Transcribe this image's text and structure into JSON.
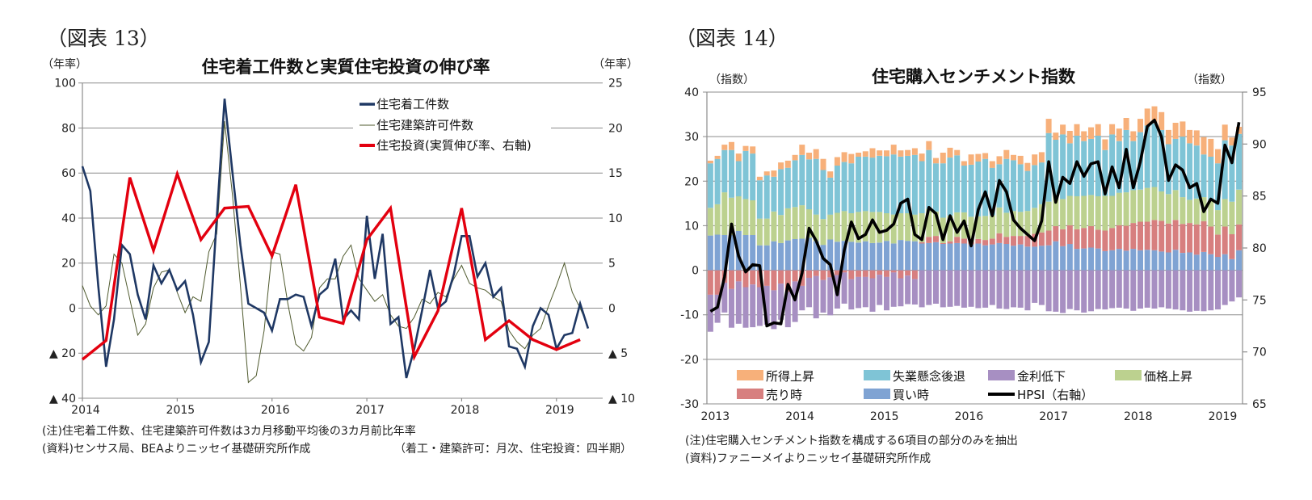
{
  "figure13": {
    "label": "（図表 13）",
    "note": "(注)住宅着工件数、住宅建築許可件数は3カ月移動平均後の3カ月前比年率",
    "source": "(資料)センサス局、BEAよりニッセイ基礎研究所作成",
    "frequency_note": "（着工・建築許可：月次、住宅投資：四半期）"
  },
  "figure14": {
    "label": "（図表 14）",
    "note": "(注)住宅購入センチメント指数を構成する6項目の部分のみを抽出",
    "source": "(資料)ファニーメイよりニッセイ基礎研究所作成"
  },
  "chart_data": [
    {
      "type": "line",
      "title": "住宅着工件数と実質住宅投資の伸び率",
      "left_unit": "（年率）",
      "right_unit": "（年率）",
      "ylim": [
        -40,
        100
      ],
      "y2lim": [
        -10,
        25
      ],
      "grid": true,
      "legend_position": "top-right",
      "yticks": [
        {
          "value": 100,
          "label": "100"
        },
        {
          "value": 80,
          "label": "80"
        },
        {
          "value": 60,
          "label": "60"
        },
        {
          "value": 40,
          "label": "40"
        },
        {
          "value": 20,
          "label": "20"
        },
        {
          "value": 0,
          "label": "0"
        },
        {
          "value": -20,
          "label": "▲ 20"
        },
        {
          "value": -40,
          "label": "▲ 40"
        }
      ],
      "y2ticks": [
        {
          "value": 25,
          "label": "25"
        },
        {
          "value": 20,
          "label": "20"
        },
        {
          "value": 15,
          "label": "15"
        },
        {
          "value": 10,
          "label": "10"
        },
        {
          "value": 5,
          "label": "5"
        },
        {
          "value": 0,
          "label": "0"
        },
        {
          "value": -5,
          "label": "▲ 5"
        },
        {
          "value": -10,
          "label": "▲ 10"
        }
      ],
      "xticks": [
        "2014",
        "2015",
        "2016",
        "2017",
        "2018",
        "2019"
      ],
      "months": [
        "2014-01",
        "2014-02",
        "2014-03",
        "2014-04",
        "2014-05",
        "2014-06",
        "2014-07",
        "2014-08",
        "2014-09",
        "2014-10",
        "2014-11",
        "2014-12",
        "2015-01",
        "2015-02",
        "2015-03",
        "2015-04",
        "2015-05",
        "2015-06",
        "2015-07",
        "2015-08",
        "2015-09",
        "2015-10",
        "2015-11",
        "2015-12",
        "2016-01",
        "2016-02",
        "2016-03",
        "2016-04",
        "2016-05",
        "2016-06",
        "2016-07",
        "2016-08",
        "2016-09",
        "2016-10",
        "2016-11",
        "2016-12",
        "2017-01",
        "2017-02",
        "2017-03",
        "2017-04",
        "2017-05",
        "2017-06",
        "2017-07",
        "2017-08",
        "2017-09",
        "2017-10",
        "2017-11",
        "2017-12",
        "2018-01",
        "2018-02",
        "2018-03",
        "2018-04",
        "2018-05",
        "2018-06",
        "2018-07",
        "2018-08",
        "2018-09",
        "2018-10",
        "2018-11",
        "2018-12",
        "2019-01",
        "2019-02",
        "2019-03",
        "2019-04",
        "2019-05"
      ],
      "quarters": [
        "2014Q1",
        "2014Q2",
        "2014Q3",
        "2014Q4",
        "2015Q1",
        "2015Q2",
        "2015Q3",
        "2015Q4",
        "2016Q1",
        "2016Q2",
        "2016Q3",
        "2016Q4",
        "2017Q1",
        "2017Q2",
        "2017Q3",
        "2017Q4",
        "2018Q1",
        "2018Q2",
        "2018Q3",
        "2018Q4",
        "2019Q1",
        "2019Q2"
      ],
      "series": [
        {
          "name": "住宅着工件数",
          "axis": "left",
          "frequency": "monthly",
          "color": "#1f3864",
          "values": [
            63,
            52,
            10,
            -26,
            -5,
            28,
            24,
            6,
            -5,
            19,
            11,
            17,
            8,
            12,
            -3,
            -24,
            -15,
            40,
            93,
            60,
            28,
            2,
            0,
            -2,
            -10,
            4,
            4,
            6,
            5,
            -8,
            6,
            9,
            22,
            -5,
            -1,
            -5,
            41,
            13,
            33,
            -7,
            -4,
            -31,
            -18,
            -1,
            17,
            0,
            3,
            15,
            32,
            32,
            14,
            20,
            5,
            9,
            -17,
            -18,
            -26,
            -8,
            0,
            -3,
            -18,
            -12,
            -11,
            2,
            -9
          ]
        },
        {
          "name": "住宅建築許可件数",
          "axis": "left",
          "frequency": "monthly",
          "color": "#4f5a2e",
          "values": [
            10,
            1,
            -3,
            1,
            24,
            20,
            4,
            -12,
            -7,
            9,
            16,
            17,
            7,
            -2,
            5,
            3,
            25,
            33,
            83,
            50,
            10,
            -33,
            -30,
            -10,
            25,
            24,
            2,
            -16,
            -19,
            -13,
            9,
            13,
            13,
            23,
            28,
            13,
            8,
            3,
            6,
            -3,
            -8,
            -9,
            -4,
            4,
            2,
            7,
            5,
            13,
            19,
            11,
            9,
            8,
            5,
            3,
            -10,
            -15,
            -18,
            -12,
            -9,
            1,
            10,
            20,
            7,
            0,
            -8
          ]
        },
        {
          "name": "住宅投資(実質伸び率、右軸)",
          "axis": "right",
          "frequency": "quarterly",
          "color": "#e3000f",
          "values": [
            -5.7,
            -3.6,
            14.5,
            6.4,
            14.9,
            7.6,
            11.1,
            11.3,
            5.8,
            13.7,
            -1.0,
            -1.7,
            7.6,
            11.1,
            -5.4,
            -0.3,
            11.1,
            -3.5,
            -1.4,
            -3.5,
            -4.6,
            -3.5
          ]
        }
      ]
    },
    {
      "type": "bar",
      "stacked": true,
      "title": "住宅購入センチメント指数",
      "left_unit": "（指数）",
      "right_unit": "（指数）",
      "ylim": [
        -30,
        40
      ],
      "y2lim": [
        65,
        95
      ],
      "grid": true,
      "legend_position": "bottom",
      "yticks": [
        40,
        30,
        20,
        10,
        0,
        -10,
        -20,
        -30
      ],
      "y2ticks": [
        95,
        90,
        85,
        80,
        75,
        70,
        65
      ],
      "xticks": [
        "2013",
        "2014",
        "2015",
        "2016",
        "2017",
        "2018",
        "2019"
      ],
      "months": [
        "2013-01",
        "2013-02",
        "2013-03",
        "2013-04",
        "2013-05",
        "2013-06",
        "2013-07",
        "2013-08",
        "2013-09",
        "2013-10",
        "2013-11",
        "2013-12",
        "2014-01",
        "2014-02",
        "2014-03",
        "2014-04",
        "2014-05",
        "2014-06",
        "2014-07",
        "2014-08",
        "2014-09",
        "2014-10",
        "2014-11",
        "2014-12",
        "2015-01",
        "2015-02",
        "2015-03",
        "2015-04",
        "2015-05",
        "2015-06",
        "2015-07",
        "2015-08",
        "2015-09",
        "2015-10",
        "2015-11",
        "2015-12",
        "2016-01",
        "2016-02",
        "2016-03",
        "2016-04",
        "2016-05",
        "2016-06",
        "2016-07",
        "2016-08",
        "2016-09",
        "2016-10",
        "2016-11",
        "2016-12",
        "2017-01",
        "2017-02",
        "2017-03",
        "2017-04",
        "2017-05",
        "2017-06",
        "2017-07",
        "2017-08",
        "2017-09",
        "2017-10",
        "2017-11",
        "2017-12",
        "2018-01",
        "2018-02",
        "2018-03",
        "2018-04",
        "2018-05",
        "2018-06",
        "2018-07",
        "2018-08",
        "2018-09",
        "2018-10",
        "2018-11",
        "2018-12",
        "2019-01",
        "2019-02",
        "2019-03",
        "2019-04"
      ],
      "series": [
        {
          "name": "買い時",
          "key": "buy",
          "color": "#7fa3d3",
          "values": [
            7.8,
            8,
            7.9,
            7.9,
            8.8,
            7.9,
            7.9,
            5.6,
            5.6,
            6.5,
            6.1,
            6.7,
            7.0,
            7.1,
            7.3,
            6.5,
            5.7,
            6.9,
            6.4,
            6.6,
            6.4,
            6.2,
            6.5,
            6.1,
            6.2,
            6.6,
            6.0,
            6.8,
            6.6,
            6.5,
            6.0,
            6.1,
            6.3,
            5.9,
            6.0,
            6.1,
            6.0,
            5.8,
            6.0,
            5.6,
            5.8,
            6.1,
            5.9,
            5.5,
            5.8,
            5.3,
            5.3,
            5.5,
            5.6,
            6.5,
            5.4,
            5.9,
            4.8,
            4.9,
            5.1,
            4.9,
            4.3,
            4.5,
            4.8,
            4.4,
            4.8,
            4.5,
            4.6,
            4.5,
            4.2,
            4.0,
            4.6,
            3.9,
            4.0,
            3.5,
            4.1,
            3.6,
            3.0,
            3.6,
            2.5,
            4.5
          ]
        },
        {
          "name": "売り時",
          "key": "sell",
          "color": "#d77f7f",
          "values": [
            -5.5,
            -5.5,
            -2.8,
            -4.2,
            -2.5,
            -3.8,
            -3.2,
            -3.8,
            -3.5,
            -4.5,
            -3.0,
            -4.8,
            -2.5,
            -3.5,
            -1.7,
            -1.3,
            -2.2,
            -1.6,
            -1.1,
            -0.5,
            -2.0,
            -1.5,
            -1.5,
            -1.8,
            -1.0,
            -1.5,
            -0.5,
            -1.8,
            -1.2,
            -2.0,
            0.3,
            1.4,
            1.4,
            0.2,
            0.5,
            1.4,
            1.1,
            0.6,
            1.0,
            1.2,
            1.3,
            2.2,
            1.6,
            2.2,
            1.9,
            2.4,
            2.9,
            3.0,
            3.3,
            3.4,
            3.8,
            4.2,
            4.4,
            4.6,
            4.8,
            4.2,
            4.6,
            5.0,
            5.3,
            5.6,
            5.8,
            6.4,
            6.3,
            6.8,
            6.9,
            6.5,
            6.7,
            6.5,
            6.6,
            6.8,
            6.9,
            6.2,
            5.0,
            6.2,
            5.6,
            5.8
          ]
        },
        {
          "name": "価格上昇",
          "key": "price",
          "color": "#bcd18f",
          "values": [
            6.2,
            6.8,
            9.6,
            8.4,
            7.8,
            8.1,
            7.8,
            6.0,
            6.0,
            6.7,
            6.3,
            7.2,
            7.2,
            7.5,
            6.4,
            6.0,
            5.8,
            5.6,
            6.5,
            6.7,
            6.4,
            6.9,
            6.8,
            7.0,
            6.9,
            6.2,
            6.5,
            6.0,
            6.2,
            6.0,
            6.5,
            6.3,
            5.5,
            5.7,
            5.8,
            5.5,
            5.9,
            5.6,
            5.1,
            5.4,
            5.2,
            5.8,
            5.4,
            5.6,
            5.4,
            5.6,
            5.8,
            6.3,
            6.5,
            7.0,
            6.8,
            6.6,
            7.4,
            7.2,
            7.0,
            7.5,
            7.8,
            7.2,
            7.3,
            7.5,
            7.4,
            7.2,
            7.6,
            7.4,
            6.6,
            6.6,
            6.7,
            6.0,
            5.2,
            5.8,
            5.4,
            5.9,
            5.5,
            6.2,
            7.3,
            7.8
          ]
        },
        {
          "name": "失業懸念後退",
          "key": "unemp",
          "color": "#7fc4d6",
          "values": [
            10.0,
            10.2,
            9.5,
            10.7,
            7.9,
            10.8,
            10.5,
            8.6,
            9.7,
            7.8,
            10.3,
            9.1,
            10.5,
            11.3,
            11.2,
            12.5,
            11.0,
            8.3,
            10.6,
            11.0,
            11.2,
            12.4,
            12.2,
            12.2,
            12.6,
            12.8,
            13.5,
            12.7,
            12.9,
            13.4,
            11.7,
            13.2,
            10.8,
            12.2,
            13.0,
            12.8,
            10.5,
            11.7,
            12.3,
            12.8,
            10.7,
            9.7,
            12.1,
            11.4,
            10.7,
            9.0,
            9.6,
            9.4,
            15.4,
            12.4,
            14.5,
            11.8,
            13.6,
            12.3,
            12.6,
            13.6,
            10.3,
            13.8,
            11.6,
            14.0,
            11.0,
            12.9,
            14.0,
            14.3,
            13.8,
            11.2,
            11.5,
            13.6,
            12.7,
            11.9,
            9.6,
            9.8,
            10.5,
            13.2,
            12.6,
            12.5
          ]
        },
        {
          "name": "所得上昇",
          "key": "income",
          "color": "#f7b07a",
          "values": [
            0.6,
            0.7,
            1.2,
            1.8,
            1.7,
            1.1,
            1.6,
            0.8,
            0.9,
            1.4,
            1.5,
            1.6,
            1.2,
            2.3,
            1.5,
            2.2,
            2.5,
            1.4,
            1.9,
            2.2,
            2.1,
            0.9,
            1.2,
            2.1,
            1.2,
            1.3,
            2.2,
            1.4,
            1.3,
            1.5,
            1.7,
            2.0,
            1.2,
            2.4,
            2.2,
            1.2,
            1.0,
            2.3,
            1.7,
            1.3,
            1.5,
            1.8,
            2.0,
            1.2,
            1.9,
            1.8,
            2.4,
            2.3,
            3.2,
            1.6,
            2.2,
            2.8,
            2.6,
            2.2,
            2.6,
            2.6,
            2.4,
            2.3,
            2.8,
            2.7,
            2.2,
            3.0,
            3.8,
            3.8,
            4.0,
            3.2,
            3.6,
            3.4,
            3.0,
            3.4,
            3.9,
            4.0,
            3.2,
            3.5,
            1.8,
            1.6
          ]
        },
        {
          "name": "金利低下",
          "key": "rate",
          "color": "#a78fc2",
          "values": [
            -8.3,
            -6.3,
            -6.7,
            -8.7,
            -9.5,
            -9.1,
            -9.6,
            -8.7,
            -8.7,
            -8.7,
            -8.1,
            -8.0,
            -9.1,
            -5.5,
            -6.6,
            -9.5,
            -7.3,
            -8.5,
            -7.5,
            -7.0,
            -6.8,
            -7.0,
            -6.8,
            -7.5,
            -6.8,
            -7.5,
            -7.7,
            -6.3,
            -6.4,
            -5.7,
            -8.3,
            -7.8,
            -7.5,
            -8.3,
            -8.2,
            -8.0,
            -8.4,
            -8.2,
            -8.5,
            -8.4,
            -7.8,
            -8.6,
            -8.7,
            -8.3,
            -8.4,
            -9.0,
            -7.3,
            -7.8,
            -9.2,
            -9.3,
            -9.6,
            -8.7,
            -9.0,
            -9.5,
            -9.2,
            -8.7,
            -8.8,
            -8.5,
            -8.4,
            -8.6,
            -9.1,
            -8.6,
            -8.4,
            -8.6,
            -8.3,
            -8.6,
            -8.8,
            -9.0,
            -9.3,
            -9.1,
            -9.2,
            -9.0,
            -8.8,
            -7.8,
            -7.0,
            -6.1
          ]
        },
        {
          "name": "HPSI（右軸）",
          "key": "hpsi",
          "type": "line",
          "axis": "right",
          "color": "#000000",
          "values": [
            73.9,
            74.3,
            77.2,
            82.3,
            79.2,
            77.7,
            78.4,
            78.3,
            72.5,
            72.8,
            72.7,
            76.5,
            75.0,
            77.6,
            81.9,
            80.7,
            79.0,
            78.4,
            75.5,
            79.8,
            82.5,
            80.9,
            81.3,
            82.7,
            81.5,
            81.7,
            82.3,
            84.3,
            84.7,
            81.3,
            80.8,
            83.9,
            83.3,
            80.8,
            83.1,
            81.5,
            82.6,
            80.2,
            83.7,
            85.4,
            83.1,
            86.5,
            85.4,
            82.7,
            81.9,
            81.3,
            80.7,
            82.6,
            88.3,
            84.4,
            86.8,
            86.2,
            88.3,
            86.9,
            88.1,
            88.3,
            85.2,
            87.8,
            85.8,
            89.5,
            85.8,
            88.3,
            91.7,
            92.3,
            90.7,
            86.5,
            88.0,
            87.5,
            85.8,
            86.2,
            83.5,
            84.7,
            84.3,
            89.9,
            88.2,
            92.1
          ]
        }
      ],
      "legend_order": [
        "income",
        "unemp",
        "rate",
        "price",
        "sell",
        "buy",
        "hpsi"
      ]
    }
  ]
}
